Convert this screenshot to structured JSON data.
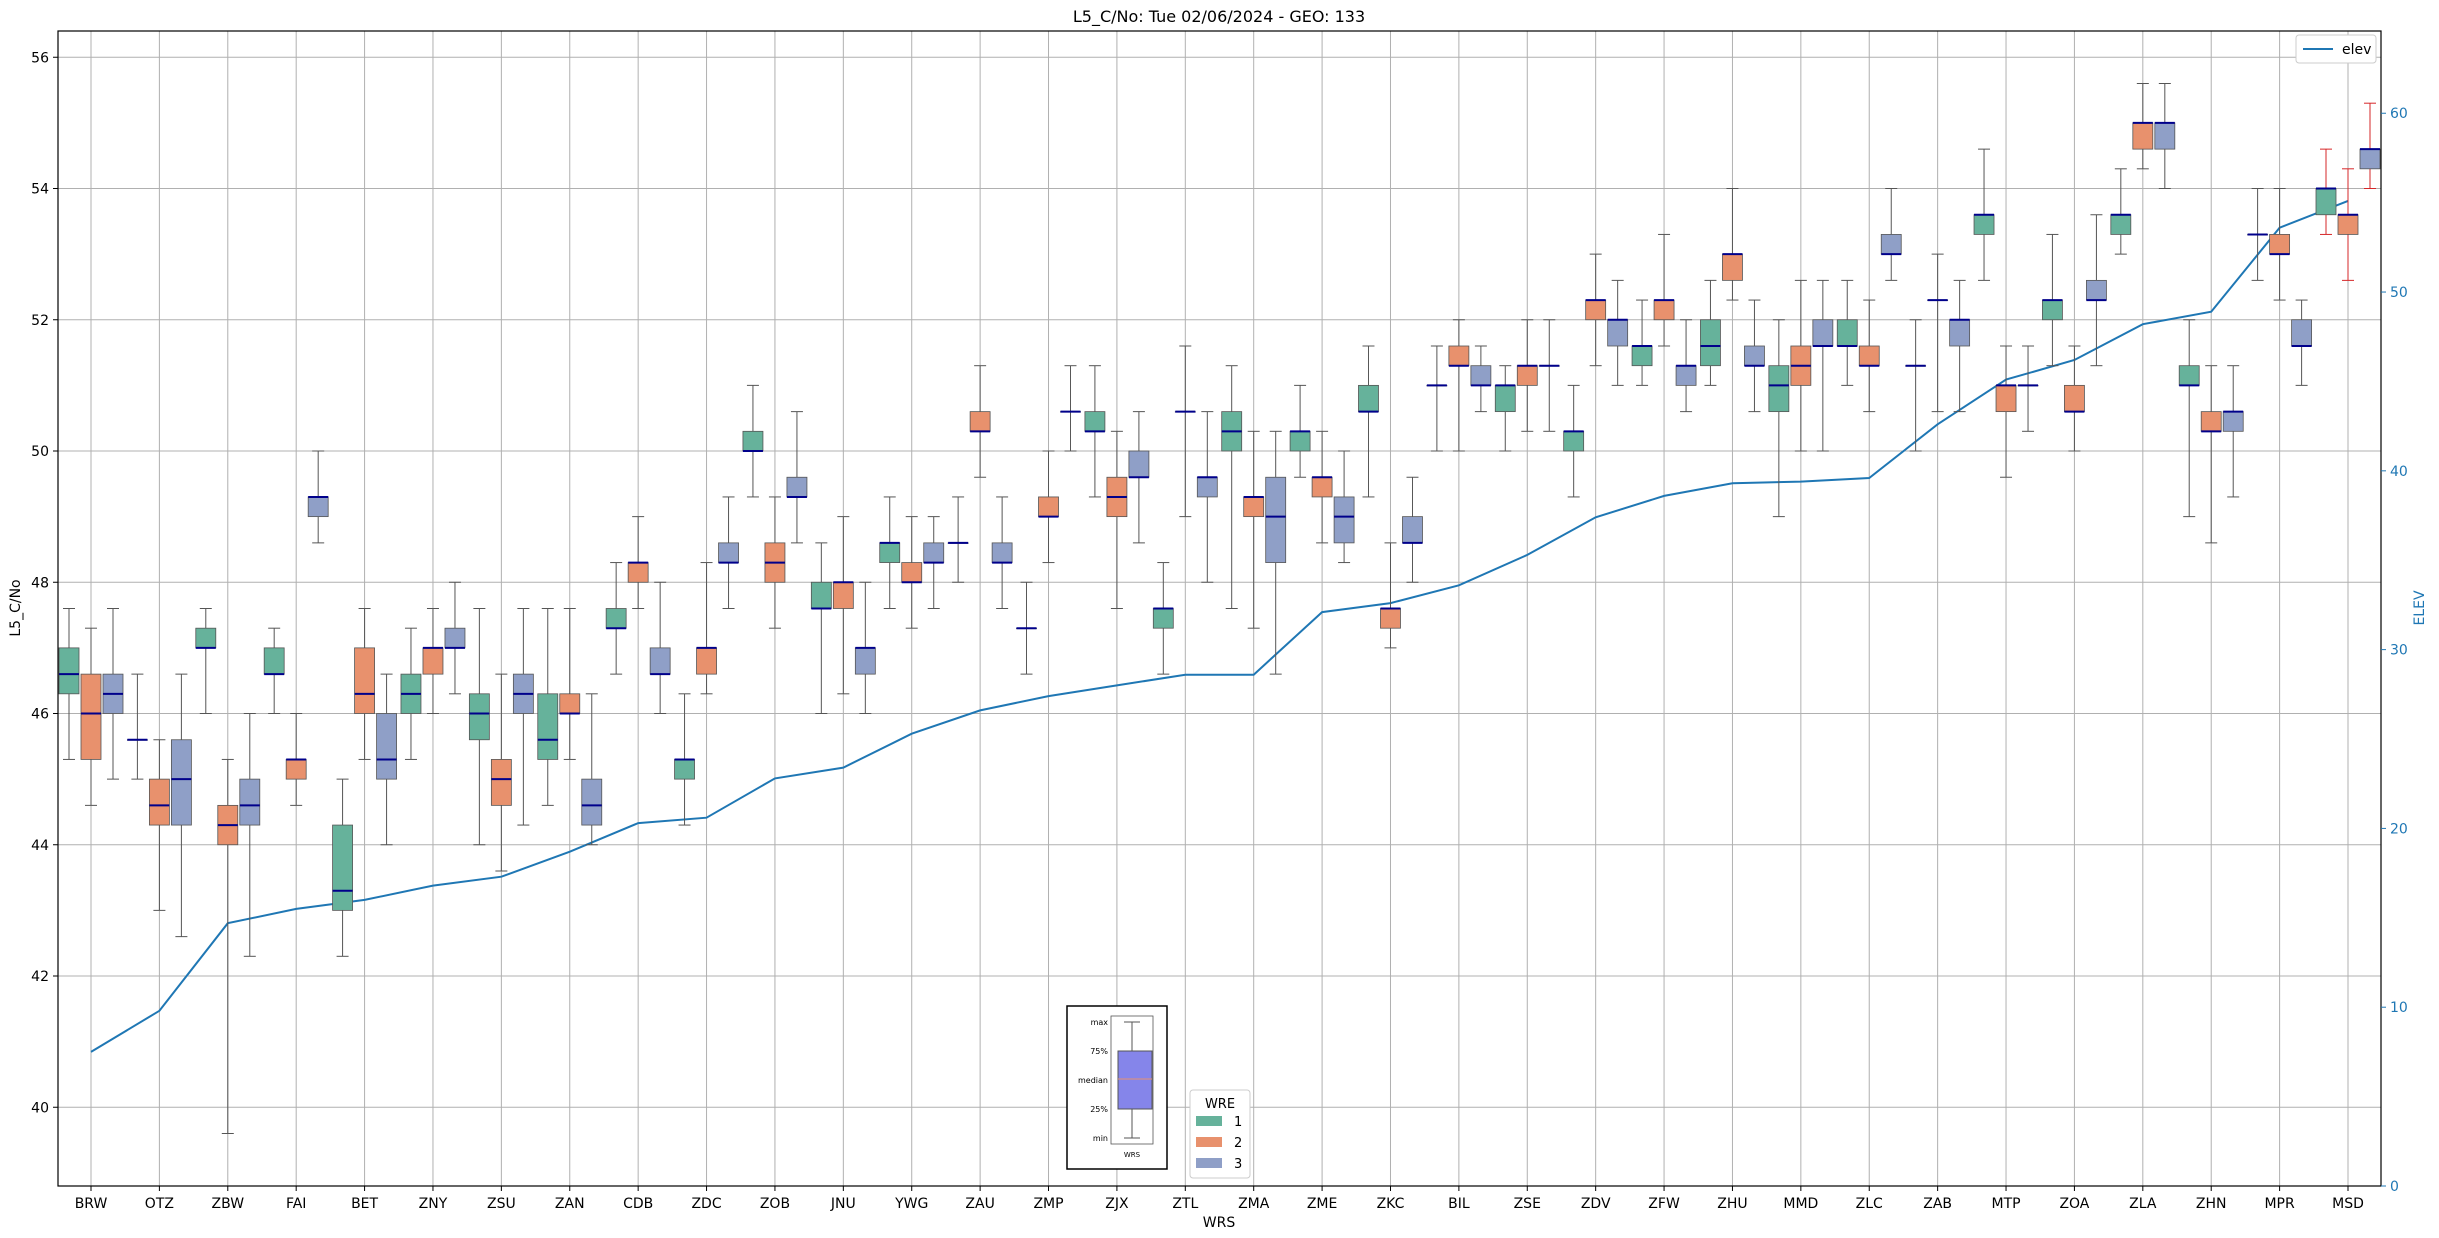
{
  "chart_data": {
    "type": "box",
    "title": "L5_C/No: Tue 02/06/2024 - GEO: 133",
    "xlabel": "WRS",
    "ylabel": "L5_C/No",
    "y2label": "ELEV",
    "ylim": [
      38.8,
      56.4
    ],
    "y2lim": [
      0,
      64.6
    ],
    "yticks": [
      40,
      42,
      44,
      46,
      48,
      50,
      52,
      54,
      56
    ],
    "y2ticks": [
      0,
      10,
      20,
      30,
      40,
      50,
      60
    ],
    "grid": true,
    "colors": {
      "1": "#66b29b",
      "2": "#e8916d",
      "3": "#8f9fc7",
      "median": "#00008b",
      "elev": "#1f77b4",
      "whisker": "#555555",
      "outlier_whisker": "#d62728"
    },
    "categories": [
      "BRW",
      "OTZ",
      "ZBW",
      "FAI",
      "BET",
      "ZNY",
      "ZSU",
      "ZAN",
      "CDB",
      "ZDC",
      "ZOB",
      "JNU",
      "YWG",
      "ZAU",
      "ZMP",
      "ZJX",
      "ZTL",
      "ZMA",
      "ZME",
      "ZKC",
      "BIL",
      "ZSE",
      "ZDV",
      "ZFW",
      "ZHU",
      "MMD",
      "ZLC",
      "ZAB",
      "MTP",
      "ZOA",
      "ZLA",
      "ZHN",
      "MPR",
      "MSD"
    ],
    "boxes": [
      {
        "wrs": "BRW",
        "wre": "1",
        "min": 45.3,
        "q1": 46.3,
        "median": 46.6,
        "q3": 47.0,
        "max": 47.6
      },
      {
        "wrs": "BRW",
        "wre": "2",
        "min": 44.6,
        "q1": 45.3,
        "median": 46.0,
        "q3": 46.6,
        "max": 47.3
      },
      {
        "wrs": "BRW",
        "wre": "3",
        "min": 45.0,
        "q1": 46.0,
        "median": 46.3,
        "q3": 46.6,
        "max": 47.6
      },
      {
        "wrs": "OTZ",
        "wre": "1",
        "min": 45.0,
        "q1": 45.6,
        "median": 45.6,
        "q3": 45.6,
        "max": 46.6
      },
      {
        "wrs": "OTZ",
        "wre": "2",
        "min": 43.0,
        "q1": 44.3,
        "median": 44.6,
        "q3": 45.0,
        "max": 45.6
      },
      {
        "wrs": "OTZ",
        "wre": "3",
        "min": 42.6,
        "q1": 44.3,
        "median": 45.0,
        "q3": 45.6,
        "max": 46.6
      },
      {
        "wrs": "ZBW",
        "wre": "1",
        "min": 46.0,
        "q1": 47.0,
        "median": 47.0,
        "q3": 47.3,
        "max": 47.6
      },
      {
        "wrs": "ZBW",
        "wre": "2",
        "min": 39.6,
        "q1": 44.0,
        "median": 44.3,
        "q3": 44.6,
        "max": 45.3
      },
      {
        "wrs": "ZBW",
        "wre": "3",
        "min": 42.3,
        "q1": 44.3,
        "median": 44.6,
        "q3": 45.0,
        "max": 46.0
      },
      {
        "wrs": "FAI",
        "wre": "1",
        "min": 46.0,
        "q1": 46.6,
        "median": 46.6,
        "q3": 47.0,
        "max": 47.3
      },
      {
        "wrs": "FAI",
        "wre": "2",
        "min": 44.6,
        "q1": 45.0,
        "median": 45.3,
        "q3": 45.3,
        "max": 46.0
      },
      {
        "wrs": "FAI",
        "wre": "3",
        "min": 48.6,
        "q1": 49.0,
        "median": 49.3,
        "q3": 49.3,
        "max": 50.0
      },
      {
        "wrs": "BET",
        "wre": "1",
        "min": 42.3,
        "q1": 43.0,
        "median": 43.3,
        "q3": 44.3,
        "max": 45.0
      },
      {
        "wrs": "BET",
        "wre": "2",
        "min": 45.3,
        "q1": 46.0,
        "median": 46.3,
        "q3": 47.0,
        "max": 47.6
      },
      {
        "wrs": "BET",
        "wre": "3",
        "min": 44.0,
        "q1": 45.0,
        "median": 45.3,
        "q3": 46.0,
        "max": 46.6
      },
      {
        "wrs": "ZNY",
        "wre": "1",
        "min": 45.3,
        "q1": 46.0,
        "median": 46.3,
        "q3": 46.6,
        "max": 47.3
      },
      {
        "wrs": "ZNY",
        "wre": "2",
        "min": 46.0,
        "q1": 46.6,
        "median": 47.0,
        "q3": 47.0,
        "max": 47.6
      },
      {
        "wrs": "ZNY",
        "wre": "3",
        "min": 46.3,
        "q1": 47.0,
        "median": 47.0,
        "q3": 47.3,
        "max": 48.0
      },
      {
        "wrs": "ZSU",
        "wre": "1",
        "min": 44.0,
        "q1": 45.6,
        "median": 46.0,
        "q3": 46.3,
        "max": 47.6
      },
      {
        "wrs": "ZSU",
        "wre": "2",
        "min": 43.6,
        "q1": 44.6,
        "median": 45.0,
        "q3": 45.3,
        "max": 46.6
      },
      {
        "wrs": "ZSU",
        "wre": "3",
        "min": 44.3,
        "q1": 46.0,
        "median": 46.3,
        "q3": 46.6,
        "max": 47.6
      },
      {
        "wrs": "ZAN",
        "wre": "1",
        "min": 44.6,
        "q1": 45.3,
        "median": 45.6,
        "q3": 46.3,
        "max": 47.6
      },
      {
        "wrs": "ZAN",
        "wre": "2",
        "min": 45.3,
        "q1": 46.0,
        "median": 46.0,
        "q3": 46.3,
        "max": 47.6
      },
      {
        "wrs": "ZAN",
        "wre": "3",
        "min": 44.0,
        "q1": 44.3,
        "median": 44.6,
        "q3": 45.0,
        "max": 46.3
      },
      {
        "wrs": "CDB",
        "wre": "1",
        "min": 46.6,
        "q1": 47.3,
        "median": 47.3,
        "q3": 47.6,
        "max": 48.3
      },
      {
        "wrs": "CDB",
        "wre": "2",
        "min": 47.6,
        "q1": 48.0,
        "median": 48.3,
        "q3": 48.3,
        "max": 49.0
      },
      {
        "wrs": "CDB",
        "wre": "3",
        "min": 46.0,
        "q1": 46.6,
        "median": 46.6,
        "q3": 47.0,
        "max": 48.0
      },
      {
        "wrs": "ZDC",
        "wre": "1",
        "min": 44.3,
        "q1": 45.0,
        "median": 45.3,
        "q3": 45.3,
        "max": 46.3
      },
      {
        "wrs": "ZDC",
        "wre": "2",
        "min": 46.3,
        "q1": 46.6,
        "median": 47.0,
        "q3": 47.0,
        "max": 48.3
      },
      {
        "wrs": "ZDC",
        "wre": "3",
        "min": 47.6,
        "q1": 48.3,
        "median": 48.3,
        "q3": 48.6,
        "max": 49.3
      },
      {
        "wrs": "ZOB",
        "wre": "1",
        "min": 49.3,
        "q1": 50.0,
        "median": 50.0,
        "q3": 50.3,
        "max": 51.0
      },
      {
        "wrs": "ZOB",
        "wre": "2",
        "min": 47.3,
        "q1": 48.0,
        "median": 48.3,
        "q3": 48.6,
        "max": 49.3
      },
      {
        "wrs": "ZOB",
        "wre": "3",
        "min": 48.6,
        "q1": 49.3,
        "median": 49.3,
        "q3": 49.6,
        "max": 50.6
      },
      {
        "wrs": "JNU",
        "wre": "1",
        "min": 46.0,
        "q1": 47.6,
        "median": 47.6,
        "q3": 48.0,
        "max": 48.6
      },
      {
        "wrs": "JNU",
        "wre": "2",
        "min": 46.3,
        "q1": 47.6,
        "median": 48.0,
        "q3": 48.0,
        "max": 49.0
      },
      {
        "wrs": "JNU",
        "wre": "3",
        "min": 46.0,
        "q1": 46.6,
        "median": 47.0,
        "q3": 47.0,
        "max": 48.0
      },
      {
        "wrs": "YWG",
        "wre": "1",
        "min": 47.6,
        "q1": 48.3,
        "median": 48.6,
        "q3": 48.6,
        "max": 49.3
      },
      {
        "wrs": "YWG",
        "wre": "2",
        "min": 47.3,
        "q1": 48.0,
        "median": 48.0,
        "q3": 48.3,
        "max": 49.0
      },
      {
        "wrs": "YWG",
        "wre": "3",
        "min": 47.6,
        "q1": 48.3,
        "median": 48.3,
        "q3": 48.6,
        "max": 49.0
      },
      {
        "wrs": "ZAU",
        "wre": "1",
        "min": 48.0,
        "q1": 48.6,
        "median": 48.6,
        "q3": 48.6,
        "max": 49.3
      },
      {
        "wrs": "ZAU",
        "wre": "2",
        "min": 49.6,
        "q1": 50.3,
        "median": 50.3,
        "q3": 50.6,
        "max": 51.3
      },
      {
        "wrs": "ZAU",
        "wre": "3",
        "min": 47.6,
        "q1": 48.3,
        "median": 48.3,
        "q3": 48.6,
        "max": 49.3
      },
      {
        "wrs": "ZMP",
        "wre": "1",
        "min": 46.6,
        "q1": 47.3,
        "median": 47.3,
        "q3": 47.3,
        "max": 48.0
      },
      {
        "wrs": "ZMP",
        "wre": "2",
        "min": 48.3,
        "q1": 49.0,
        "median": 49.0,
        "q3": 49.3,
        "max": 50.0
      },
      {
        "wrs": "ZMP",
        "wre": "3",
        "min": 50.0,
        "q1": 50.6,
        "median": 50.6,
        "q3": 50.6,
        "max": 51.3
      },
      {
        "wrs": "ZJX",
        "wre": "1",
        "min": 49.3,
        "q1": 50.3,
        "median": 50.3,
        "q3": 50.6,
        "max": 51.3
      },
      {
        "wrs": "ZJX",
        "wre": "2",
        "min": 47.6,
        "q1": 49.0,
        "median": 49.3,
        "q3": 49.6,
        "max": 50.3
      },
      {
        "wrs": "ZJX",
        "wre": "3",
        "min": 48.6,
        "q1": 49.6,
        "median": 49.6,
        "q3": 50.0,
        "max": 50.6
      },
      {
        "wrs": "ZTL",
        "wre": "1",
        "min": 46.6,
        "q1": 47.3,
        "median": 47.6,
        "q3": 47.6,
        "max": 48.3
      },
      {
        "wrs": "ZTL",
        "wre": "2",
        "min": 49.0,
        "q1": 50.6,
        "median": 50.6,
        "q3": 50.6,
        "max": 51.6
      },
      {
        "wrs": "ZTL",
        "wre": "3",
        "min": 48.0,
        "q1": 49.3,
        "median": 49.6,
        "q3": 49.6,
        "max": 50.6
      },
      {
        "wrs": "ZMA",
        "wre": "1",
        "min": 47.6,
        "q1": 50.0,
        "median": 50.3,
        "q3": 50.6,
        "max": 51.3
      },
      {
        "wrs": "ZMA",
        "wre": "2",
        "min": 47.3,
        "q1": 49.0,
        "median": 49.3,
        "q3": 49.3,
        "max": 50.3
      },
      {
        "wrs": "ZMA",
        "wre": "3",
        "min": 46.6,
        "q1": 48.3,
        "median": 49.0,
        "q3": 49.6,
        "max": 50.3
      },
      {
        "wrs": "ZME",
        "wre": "1",
        "min": 49.6,
        "q1": 50.0,
        "median": 50.3,
        "q3": 50.3,
        "max": 51.0
      },
      {
        "wrs": "ZME",
        "wre": "2",
        "min": 48.6,
        "q1": 49.3,
        "median": 49.6,
        "q3": 49.6,
        "max": 50.3
      },
      {
        "wrs": "ZME",
        "wre": "3",
        "min": 48.3,
        "q1": 48.6,
        "median": 49.0,
        "q3": 49.3,
        "max": 50.0
      },
      {
        "wrs": "ZKC",
        "wre": "1",
        "min": 49.3,
        "q1": 50.6,
        "median": 50.6,
        "q3": 51.0,
        "max": 51.6
      },
      {
        "wrs": "ZKC",
        "wre": "2",
        "min": 47.0,
        "q1": 47.3,
        "median": 47.6,
        "q3": 47.6,
        "max": 48.6
      },
      {
        "wrs": "ZKC",
        "wre": "3",
        "min": 48.0,
        "q1": 48.6,
        "median": 48.6,
        "q3": 49.0,
        "max": 49.6
      },
      {
        "wrs": "BIL",
        "wre": "1",
        "min": 50.0,
        "q1": 51.0,
        "median": 51.0,
        "q3": 51.0,
        "max": 51.6
      },
      {
        "wrs": "BIL",
        "wre": "2",
        "min": 50.0,
        "q1": 51.3,
        "median": 51.3,
        "q3": 51.6,
        "max": 52.0
      },
      {
        "wrs": "BIL",
        "wre": "3",
        "min": 50.6,
        "q1": 51.0,
        "median": 51.0,
        "q3": 51.3,
        "max": 51.6
      },
      {
        "wrs": "ZSE",
        "wre": "1",
        "min": 50.0,
        "q1": 50.6,
        "median": 51.0,
        "q3": 51.0,
        "max": 51.3
      },
      {
        "wrs": "ZSE",
        "wre": "2",
        "min": 50.3,
        "q1": 51.0,
        "median": 51.3,
        "q3": 51.3,
        "max": 52.0
      },
      {
        "wrs": "ZSE",
        "wre": "3",
        "min": 50.3,
        "q1": 51.3,
        "median": 51.3,
        "q3": 51.3,
        "max": 52.0
      },
      {
        "wrs": "ZDV",
        "wre": "1",
        "min": 49.3,
        "q1": 50.0,
        "median": 50.3,
        "q3": 50.3,
        "max": 51.0
      },
      {
        "wrs": "ZDV",
        "wre": "2",
        "min": 51.3,
        "q1": 52.0,
        "median": 52.3,
        "q3": 52.3,
        "max": 53.0
      },
      {
        "wrs": "ZDV",
        "wre": "3",
        "min": 51.0,
        "q1": 51.6,
        "median": 52.0,
        "q3": 52.0,
        "max": 52.6
      },
      {
        "wrs": "ZFW",
        "wre": "1",
        "min": 51.0,
        "q1": 51.3,
        "median": 51.6,
        "q3": 51.6,
        "max": 52.3
      },
      {
        "wrs": "ZFW",
        "wre": "2",
        "min": 51.6,
        "q1": 52.0,
        "median": 52.3,
        "q3": 52.3,
        "max": 53.3
      },
      {
        "wrs": "ZFW",
        "wre": "3",
        "min": 50.6,
        "q1": 51.0,
        "median": 51.3,
        "q3": 51.3,
        "max": 52.0
      },
      {
        "wrs": "ZHU",
        "wre": "1",
        "min": 51.0,
        "q1": 51.3,
        "median": 51.6,
        "q3": 52.0,
        "max": 52.6
      },
      {
        "wrs": "ZHU",
        "wre": "2",
        "min": 52.3,
        "q1": 52.6,
        "median": 53.0,
        "q3": 53.0,
        "max": 54.0
      },
      {
        "wrs": "ZHU",
        "wre": "3",
        "min": 50.6,
        "q1": 51.3,
        "median": 51.3,
        "q3": 51.6,
        "max": 52.3
      },
      {
        "wrs": "MMD",
        "wre": "1",
        "min": 49.0,
        "q1": 50.6,
        "median": 51.0,
        "q3": 51.3,
        "max": 52.0
      },
      {
        "wrs": "MMD",
        "wre": "2",
        "min": 50.0,
        "q1": 51.0,
        "median": 51.3,
        "q3": 51.6,
        "max": 52.6
      },
      {
        "wrs": "MMD",
        "wre": "3",
        "min": 50.0,
        "q1": 51.6,
        "median": 51.6,
        "q3": 52.0,
        "max": 52.6
      },
      {
        "wrs": "ZLC",
        "wre": "1",
        "min": 51.0,
        "q1": 51.6,
        "median": 51.6,
        "q3": 52.0,
        "max": 52.6
      },
      {
        "wrs": "ZLC",
        "wre": "2",
        "min": 50.6,
        "q1": 51.3,
        "median": 51.3,
        "q3": 51.6,
        "max": 52.3
      },
      {
        "wrs": "ZLC",
        "wre": "3",
        "min": 52.6,
        "q1": 53.0,
        "median": 53.0,
        "q3": 53.3,
        "max": 54.0
      },
      {
        "wrs": "ZAB",
        "wre": "1",
        "min": 50.0,
        "q1": 51.3,
        "median": 51.3,
        "q3": 51.3,
        "max": 52.0
      },
      {
        "wrs": "ZAB",
        "wre": "2",
        "min": 50.6,
        "q1": 52.3,
        "median": 52.3,
        "q3": 52.3,
        "max": 53.0
      },
      {
        "wrs": "ZAB",
        "wre": "3",
        "min": 50.6,
        "q1": 51.6,
        "median": 52.0,
        "q3": 52.0,
        "max": 52.6
      },
      {
        "wrs": "MTP",
        "wre": "1",
        "min": 52.6,
        "q1": 53.3,
        "median": 53.6,
        "q3": 53.6,
        "max": 54.6
      },
      {
        "wrs": "MTP",
        "wre": "2",
        "min": 49.6,
        "q1": 50.6,
        "median": 51.0,
        "q3": 51.0,
        "max": 51.6
      },
      {
        "wrs": "MTP",
        "wre": "3",
        "min": 50.3,
        "q1": 51.0,
        "median": 51.0,
        "q3": 51.0,
        "max": 51.6
      },
      {
        "wrs": "ZOA",
        "wre": "1",
        "min": 51.3,
        "q1": 52.0,
        "median": 52.3,
        "q3": 52.3,
        "max": 53.3
      },
      {
        "wrs": "ZOA",
        "wre": "2",
        "min": 50.0,
        "q1": 50.6,
        "median": 50.6,
        "q3": 51.0,
        "max": 51.6
      },
      {
        "wrs": "ZOA",
        "wre": "3",
        "min": 51.3,
        "q1": 52.3,
        "median": 52.3,
        "q3": 52.6,
        "max": 53.6
      },
      {
        "wrs": "ZLA",
        "wre": "1",
        "min": 53.0,
        "q1": 53.3,
        "median": 53.6,
        "q3": 53.6,
        "max": 54.3
      },
      {
        "wrs": "ZLA",
        "wre": "2",
        "min": 54.3,
        "q1": 54.6,
        "median": 55.0,
        "q3": 55.0,
        "max": 55.6
      },
      {
        "wrs": "ZLA",
        "wre": "3",
        "min": 54.0,
        "q1": 54.6,
        "median": 55.0,
        "q3": 55.0,
        "max": 55.6
      },
      {
        "wrs": "ZHN",
        "wre": "1",
        "min": 49.0,
        "q1": 51.0,
        "median": 51.0,
        "q3": 51.3,
        "max": 52.0
      },
      {
        "wrs": "ZHN",
        "wre": "2",
        "min": 48.6,
        "q1": 50.3,
        "median": 50.3,
        "q3": 50.6,
        "max": 51.3
      },
      {
        "wrs": "ZHN",
        "wre": "3",
        "min": 49.3,
        "q1": 50.3,
        "median": 50.6,
        "q3": 50.6,
        "max": 51.3
      },
      {
        "wrs": "MPR",
        "wre": "1",
        "min": 52.6,
        "q1": 53.3,
        "median": 53.3,
        "q3": 53.3,
        "max": 54.0
      },
      {
        "wrs": "MPR",
        "wre": "2",
        "min": 52.3,
        "q1": 53.0,
        "median": 53.0,
        "q3": 53.3,
        "max": 54.0
      },
      {
        "wrs": "MPR",
        "wre": "3",
        "min": 51.0,
        "q1": 51.6,
        "median": 51.6,
        "q3": 52.0,
        "max": 52.3
      },
      {
        "wrs": "MSD",
        "wre": "1",
        "min": 53.3,
        "q1": 53.6,
        "median": 54.0,
        "q3": 54.0,
        "max": 54.6,
        "whisker_color": "red"
      },
      {
        "wrs": "MSD",
        "wre": "2",
        "min": 52.6,
        "q1": 53.3,
        "median": 53.6,
        "q3": 53.6,
        "max": 54.3,
        "whisker_color": "red"
      },
      {
        "wrs": "MSD",
        "wre": "3",
        "min": 54.0,
        "q1": 54.3,
        "median": 54.6,
        "q3": 54.6,
        "max": 55.3,
        "whisker_color": "red"
      }
    ],
    "elev_series": {
      "name": "elev",
      "values": [
        7.5,
        9.8,
        14.7,
        15.5,
        16.0,
        16.8,
        17.3,
        18.7,
        20.3,
        20.6,
        22.8,
        23.4,
        25.3,
        26.6,
        27.4,
        28.0,
        28.6,
        28.6,
        32.1,
        32.6,
        33.6,
        35.3,
        37.4,
        38.6,
        39.3,
        39.4,
        39.6,
        42.6,
        45.1,
        46.2,
        48.2,
        48.9,
        53.6,
        55.1
      ]
    },
    "legend_elev": {
      "label": "elev",
      "placement": "top-right"
    },
    "legend_wre": {
      "title": "WRE",
      "entries": [
        "1",
        "2",
        "3"
      ],
      "placement": "bottom-center"
    },
    "key_inset": {
      "labels": [
        "max",
        "75%",
        "median",
        "25%",
        "min"
      ],
      "xlabel": "WRS"
    }
  }
}
